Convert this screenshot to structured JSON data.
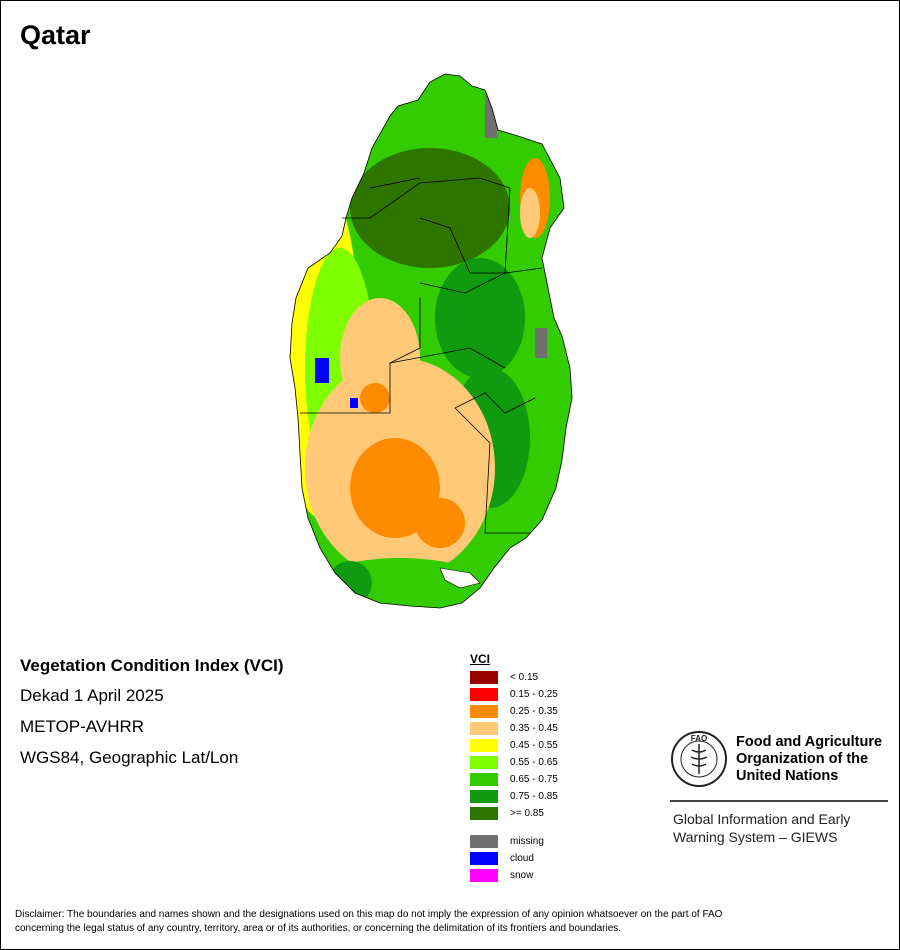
{
  "map_title": "Qatar",
  "info": {
    "index_name": "Vegetation Condition Index (VCI)",
    "period": "Dekad 1 April 2025",
    "sensor": "METOP-AVHRR",
    "projection": "WGS84, Geographic Lat/Lon"
  },
  "legend": {
    "title": "VCI",
    "classes": [
      {
        "label": "< 0.15",
        "color": "#990000"
      },
      {
        "label": "0.15 - 0.25",
        "color": "#ff0000"
      },
      {
        "label": "0.25 - 0.35",
        "color": "#ff8c00"
      },
      {
        "label": "0.35 - 0.45",
        "color": "#ffc978"
      },
      {
        "label": "0.45 - 0.55",
        "color": "#ffff00"
      },
      {
        "label": "0.55 - 0.65",
        "color": "#80ff00"
      },
      {
        "label": "0.65 - 0.75",
        "color": "#33cc00"
      },
      {
        "label": "0.75 - 0.85",
        "color": "#109a10"
      },
      {
        "label": ">= 0.85",
        "color": "#2e7500"
      }
    ],
    "special": [
      {
        "label": "missing",
        "color": "#707070"
      },
      {
        "label": "cloud",
        "color": "#0000ff"
      },
      {
        "label": "snow",
        "color": "#ff00ff"
      }
    ]
  },
  "fao": {
    "emblem_letters": "FAO",
    "org_line1": "Food and Agriculture",
    "org_line2": "Organization of the",
    "org_line3": "United Nations",
    "giews_line1": "Global Information and Early",
    "giews_line2": "Warning System – GIEWS"
  },
  "disclaimer": {
    "line1": "Disclaimer: The boundaries and names shown and the designations used on this map do not imply the expression of any opinion whatsoever on the part of FAO",
    "line2": "concerning the legal status of any country, territory, area or of its authorities, or concerning the delimitation of its frontiers and boundaries."
  }
}
